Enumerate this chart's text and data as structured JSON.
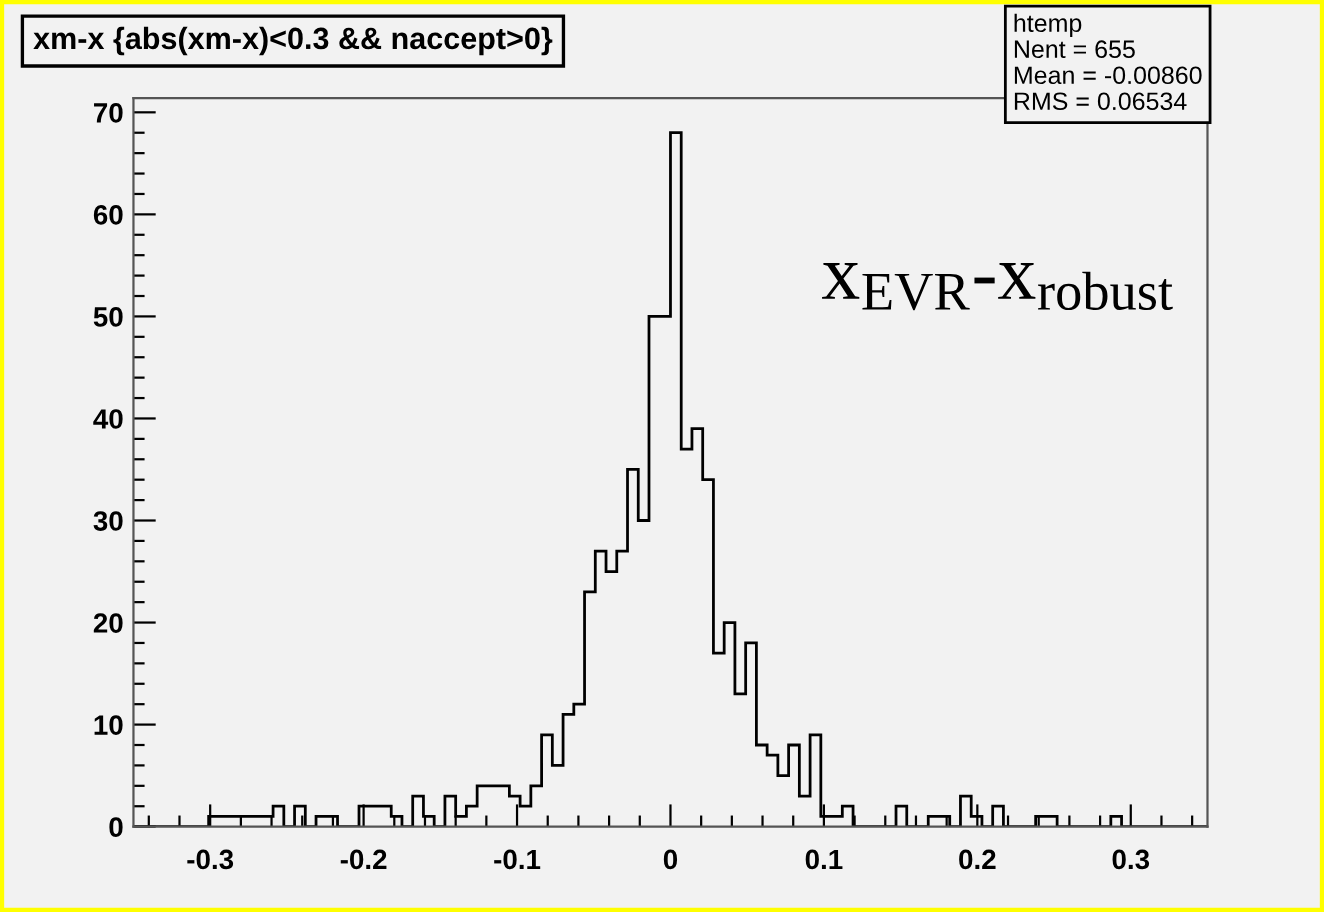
{
  "chart_data": {
    "type": "histogram",
    "title": "xm-x {abs(xm-x)<0.3 && naccept>0}",
    "bins": [
      -0.35,
      -0.343,
      -0.336,
      -0.329,
      -0.322,
      -0.315,
      -0.308,
      -0.301,
      -0.294,
      -0.287,
      -0.28,
      -0.273,
      -0.266,
      -0.259,
      -0.252,
      -0.245,
      -0.238,
      -0.231,
      -0.224,
      -0.217,
      -0.21,
      -0.203,
      -0.196,
      -0.189,
      -0.182,
      -0.175,
      -0.168,
      -0.161,
      -0.154,
      -0.147,
      -0.14,
      -0.133,
      -0.126,
      -0.119,
      -0.112,
      -0.105,
      -0.098,
      -0.091,
      -0.084,
      -0.077,
      -0.07,
      -0.063,
      -0.056,
      -0.049,
      -0.042,
      -0.035,
      -0.028,
      -0.021,
      -0.014,
      -0.007,
      0,
      0.007,
      0.014,
      0.021,
      0.028,
      0.035,
      0.042,
      0.049,
      0.056,
      0.063,
      0.07,
      0.077,
      0.084,
      0.091,
      0.098,
      0.105,
      0.112,
      0.119,
      0.126,
      0.133,
      0.14,
      0.147,
      0.154,
      0.161,
      0.168,
      0.175,
      0.182,
      0.189,
      0.196,
      0.203,
      0.21,
      0.217,
      0.224,
      0.231,
      0.238,
      0.245,
      0.252,
      0.259,
      0.266,
      0.273,
      0.28,
      0.287,
      0.294,
      0.301,
      0.308,
      0.315,
      0.322,
      0.329,
      0.336,
      0.343,
      0.35
    ],
    "values": [
      0,
      0,
      0,
      0,
      0,
      0,
      0,
      1,
      1,
      1,
      1,
      1,
      1,
      2,
      0,
      2,
      0,
      1,
      1,
      0,
      0,
      2,
      2,
      2,
      1,
      0,
      3,
      1,
      0,
      3,
      1,
      2,
      4,
      4,
      4,
      3,
      2,
      4,
      9,
      6,
      11,
      12,
      23,
      27,
      25,
      27,
      35,
      30,
      50,
      50,
      68,
      37,
      39,
      34,
      17,
      20,
      13,
      18,
      8,
      7,
      5,
      8,
      3,
      9,
      1,
      1,
      2,
      0,
      0,
      0,
      0,
      2,
      0,
      0,
      1,
      1,
      0,
      3,
      1,
      0,
      2,
      0,
      0,
      0,
      1,
      1,
      0,
      0,
      0,
      0,
      0,
      1,
      0,
      0,
      0,
      0,
      0,
      0,
      0,
      0
    ],
    "color": "#000000",
    "xlim": [
      -0.35,
      0.35
    ],
    "xticks": [
      -0.3,
      -0.2,
      -0.1,
      0,
      0.1,
      0.2,
      0.3
    ],
    "ylim": [
      0,
      71.4
    ],
    "yticks": [
      0,
      10,
      20,
      30,
      40,
      50,
      60,
      70
    ],
    "annotations": [
      "htemp",
      "Nent = 655",
      "Mean = -0.00860",
      "RMS = 0.06534",
      "x$_{EVR}$-x$_{robust}$"
    ]
  }
}
